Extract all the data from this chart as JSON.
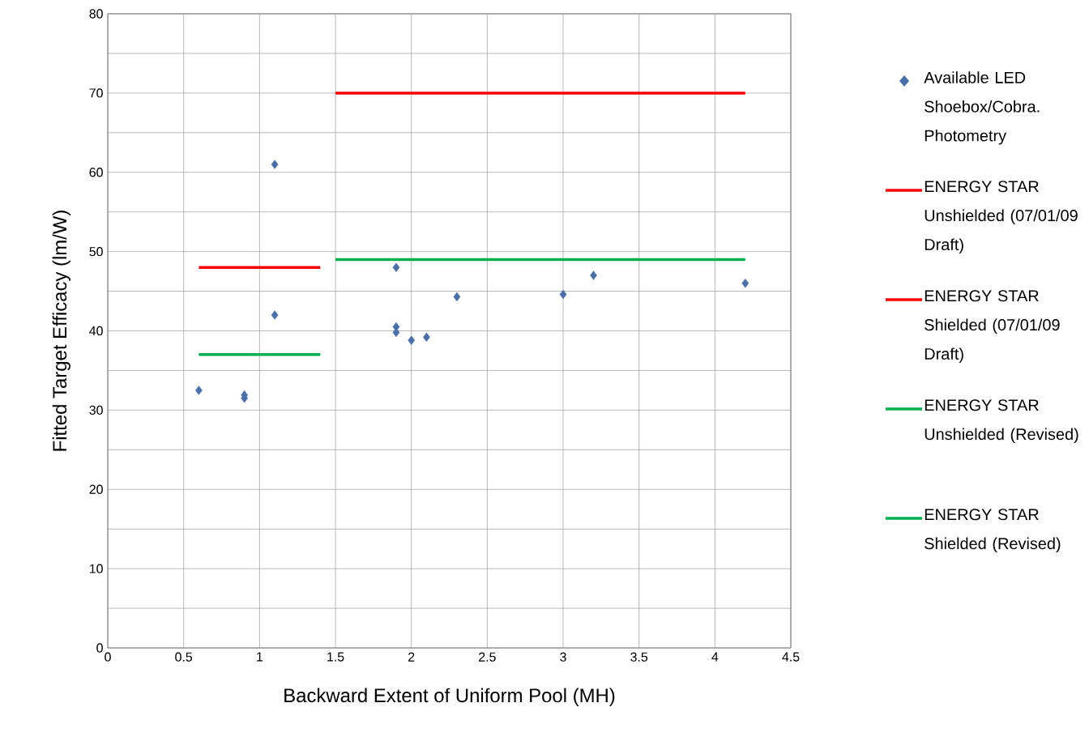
{
  "chart_data": {
    "type": "scatter",
    "xlabel": "Backward Extent of Uniform Pool (MH)",
    "ylabel": "Fitted Target Efficacy (lm/W)",
    "xlim": [
      0,
      4.5
    ],
    "ylim": [
      0,
      80
    ],
    "xticks": [
      0,
      0.5,
      1,
      1.5,
      2,
      2.5,
      3,
      3.5,
      4,
      4.5
    ],
    "yticks": [
      0,
      {
        "value": 5,
        "label": null
      },
      10,
      {
        "value": 15,
        "label": null
      },
      20,
      {
        "value": 25,
        "label": null
      },
      30,
      {
        "value": 35,
        "label": null
      },
      40,
      {
        "value": 45,
        "label": null
      },
      50,
      {
        "value": 55,
        "label": null
      },
      60,
      {
        "value": 65,
        "label": null
      },
      70,
      {
        "value": 75,
        "label": null
      },
      80
    ],
    "grid": true,
    "legend": "right",
    "series": [
      {
        "name": "Available LED Shoebox/Cobra. Photometry",
        "marker": "diamond",
        "color": "#4a6fa8",
        "x": [
          0.6,
          0.9,
          0.9,
          1.1,
          1.1,
          1.9,
          1.9,
          1.9,
          2.0,
          2.1,
          2.3,
          3.0,
          3.2,
          4.2
        ],
        "values": [
          32.5,
          31.9,
          31.5,
          61,
          42,
          48,
          40.5,
          39.8,
          38.8,
          39.2,
          44.3,
          44.6,
          47,
          46
        ]
      },
      {
        "name": "ENERGY STAR Unshielded (07/01/09 Draft)",
        "type": "line",
        "marker": "none",
        "color": "#ff0000",
        "x": [
          1.5,
          4.2
        ],
        "values": [
          70,
          70
        ]
      },
      {
        "name": "ENERGY STAR Shielded (07/01/09 Draft)",
        "type": "line",
        "marker": "none",
        "color": "#ff0000",
        "x": [
          0.6,
          1.4
        ],
        "values": [
          48,
          48
        ]
      },
      {
        "name": "ENERGY STAR Unshielded (Revised)",
        "type": "line",
        "marker": "none",
        "color": "#00b050",
        "x": [
          1.5,
          4.2
        ],
        "values": [
          49,
          49
        ]
      },
      {
        "name": "ENERGY STAR Shielded (Revised)",
        "type": "line",
        "marker": "none",
        "color": "#00b050",
        "x": [
          0.6,
          1.4
        ],
        "values": [
          37,
          37
        ]
      }
    ]
  }
}
